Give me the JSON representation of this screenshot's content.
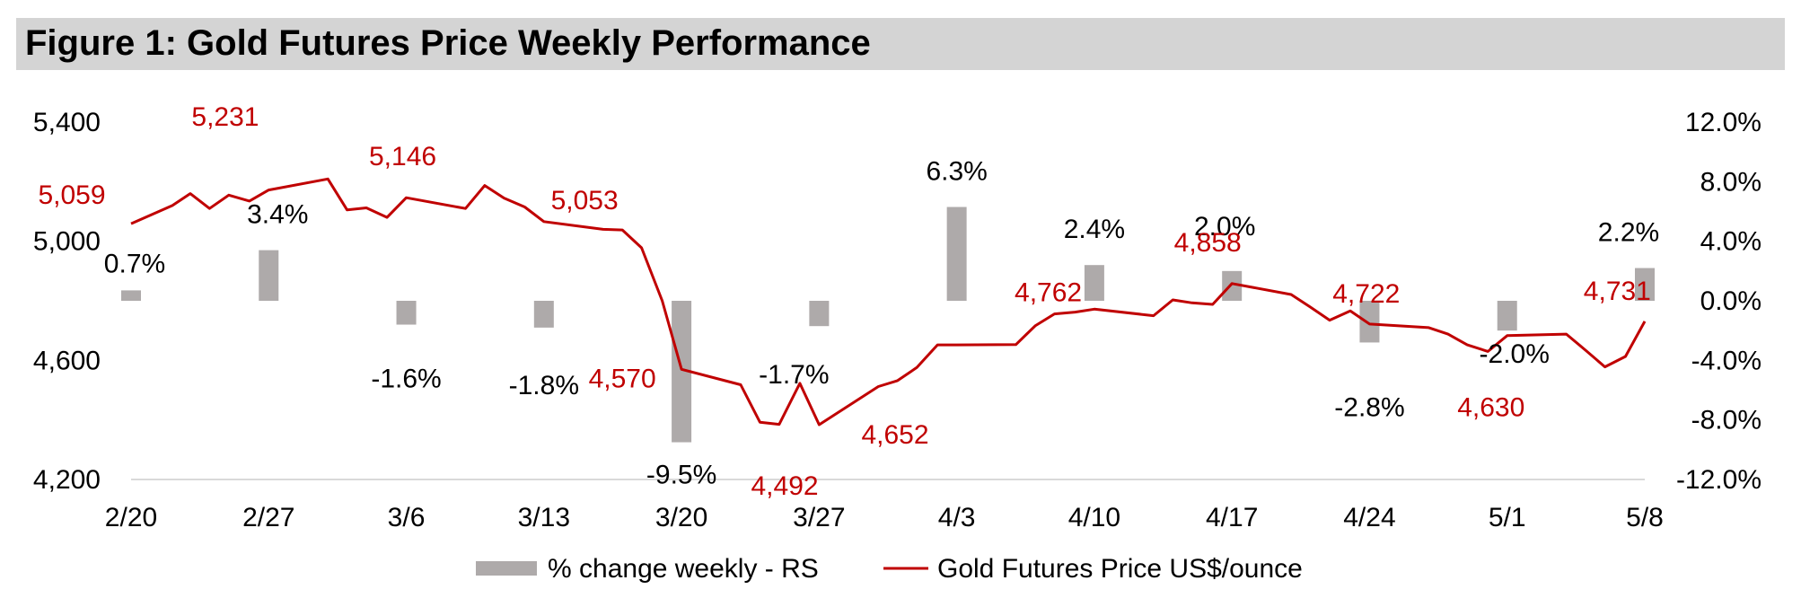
{
  "title": "Figure 1: Gold Futures Price Weekly Performance",
  "colors": {
    "bar": "#aeaaaa",
    "line": "#c00000",
    "title_bg": "#d4d4d4",
    "axis": "#d9d9d9"
  },
  "chart_data": {
    "type": "bar+line",
    "title": "Figure 1: Gold Futures Price Weekly Performance",
    "left_axis": {
      "min": 4200,
      "max": 5400,
      "ticks": [
        "5,400",
        "5,000",
        "4,600",
        "4,200"
      ],
      "tick_values": [
        5400,
        5000,
        4600,
        4200
      ]
    },
    "right_axis": {
      "min": -12,
      "max": 12,
      "ticks": [
        "12.0%",
        "8.0%",
        "4.0%",
        "0.0%",
        "-4.0%",
        "-8.0%",
        "-12.0%"
      ],
      "tick_values": [
        12,
        8,
        4,
        0,
        -4,
        -8,
        -12
      ]
    },
    "categories": [
      "2/20",
      "2/27",
      "3/6",
      "3/13",
      "3/20",
      "3/27",
      "4/3",
      "4/10",
      "4/17",
      "4/24",
      "5/1",
      "5/8"
    ],
    "grid": false,
    "legend_position": "bottom",
    "series": [
      {
        "name": "% change weekly - RS",
        "type": "bar",
        "axis": "right",
        "values": [
          0.7,
          3.4,
          -1.6,
          -1.8,
          -9.5,
          -1.7,
          6.3,
          2.4,
          2.0,
          -2.8,
          -2.0,
          2.2
        ],
        "labels": [
          "0.7%",
          "3.4%",
          "-1.6%",
          "-1.8%",
          "-9.5%",
          "-1.7%",
          "6.3%",
          "2.4%",
          "2.0%",
          "-2.8%",
          "-2.0%",
          "2.2%"
        ]
      },
      {
        "name": "Gold Futures Price US$/ounce",
        "type": "line",
        "axis": "left",
        "x": [
          0,
          0.3,
          0.43,
          0.57,
          0.71,
          0.86,
          1,
          1.43,
          1.57,
          1.71,
          1.86,
          2,
          2.43,
          2.57,
          2.71,
          2.86,
          3,
          3.43,
          3.57,
          3.71,
          3.86,
          4,
          4.43,
          4.57,
          4.71,
          4.86,
          5,
          5.43,
          5.57,
          5.71,
          5.86,
          6,
          6.43,
          6.57,
          6.71,
          6.86,
          7,
          7.43,
          7.57,
          7.71,
          7.86,
          8,
          8.43,
          8.57,
          8.71,
          8.86,
          9,
          9.43,
          9.57,
          9.71,
          9.86,
          10,
          10.43,
          10.57,
          10.71,
          10.86,
          11
        ],
        "values": [
          5059,
          5120,
          5160,
          5110,
          5155,
          5135,
          5172,
          5209,
          5105,
          5112,
          5080,
          5146,
          5110,
          5187,
          5145,
          5115,
          5066,
          5040,
          5038,
          4978,
          4800,
          4570,
          4518,
          4392,
          4385,
          4523,
          4384,
          4512,
          4532,
          4576,
          4652,
          4652,
          4653,
          4716,
          4756,
          4762,
          4772,
          4750,
          4803,
          4793,
          4788,
          4858,
          4821,
          4779,
          4735,
          4766,
          4722,
          4710,
          4688,
          4652,
          4630,
          4683,
          4688,
          4634,
          4578,
          4613,
          4731
        ],
        "labels": [
          {
            "text": "5,059",
            "x": 0,
            "y": 5059
          },
          {
            "text": "5,231",
            "x": 0.75,
            "y": 5231
          },
          {
            "text": "5,146",
            "x": 2,
            "y": 5146
          },
          {
            "text": "5,053",
            "x": 3.1,
            "y": 5053
          },
          {
            "text": "4,570",
            "x": 3.7,
            "y": 4570
          },
          {
            "text": "4,492",
            "x": 4.75,
            "y": 4492
          },
          {
            "text": "4,652",
            "x": 5.8,
            "y": 4652
          },
          {
            "text": "4,762",
            "x": 6.9,
            "y": 4762
          },
          {
            "text": "4,858",
            "x": 7.85,
            "y": 4858
          },
          {
            "text": "4,722",
            "x": 8.95,
            "y": 4722
          },
          {
            "text": "4,630",
            "x": 10,
            "y": 4630
          },
          {
            "text": "4,731",
            "x": 10.8,
            "y": 4731
          }
        ]
      }
    ]
  }
}
